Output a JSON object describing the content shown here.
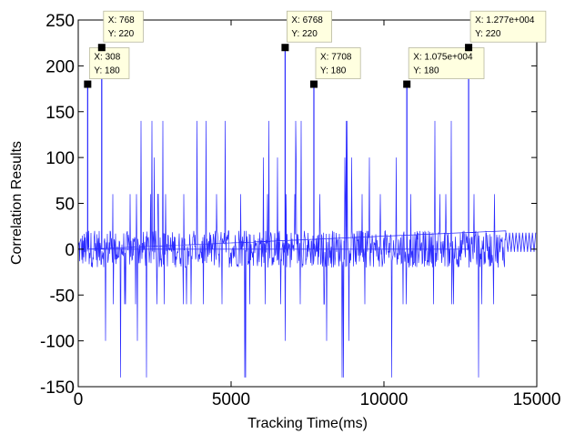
{
  "chart_data": {
    "type": "line",
    "title": "",
    "xlabel": "Tracking Time(ms)",
    "ylabel": "Correlation Results",
    "xlim": [
      0,
      15000
    ],
    "ylim": [
      -150,
      250
    ],
    "x_ticks": [
      0,
      5000,
      10000,
      15000
    ],
    "y_ticks": [
      -150,
      -100,
      -50,
      0,
      50,
      100,
      150,
      200,
      250
    ],
    "grid": false,
    "legend": "none",
    "series_color": "#2a2aff",
    "signal_end_x": 14000,
    "data_end_x": 15000,
    "level_values": [
      -140,
      -100,
      -60,
      20,
      60,
      100,
      140,
      180,
      220
    ],
    "datatips": [
      {
        "x": 308,
        "y": 180,
        "x_label": "X: 308",
        "y_label": "Y: 180"
      },
      {
        "x": 768,
        "y": 220,
        "x_label": "X: 768",
        "y_label": "Y: 220"
      },
      {
        "x": 6768,
        "y": 220,
        "x_label": "X: 6768",
        "y_label": "Y: 220"
      },
      {
        "x": 7708,
        "y": 180,
        "x_label": "X: 7708",
        "y_label": "Y: 180"
      },
      {
        "x": 10750,
        "y": 180,
        "x_label": "X: 1.075e+004",
        "y_label": "Y: 180"
      },
      {
        "x": 12770,
        "y": 220,
        "x_label": "X: 1.277e+004",
        "y_label": "Y: 220"
      }
    ]
  }
}
